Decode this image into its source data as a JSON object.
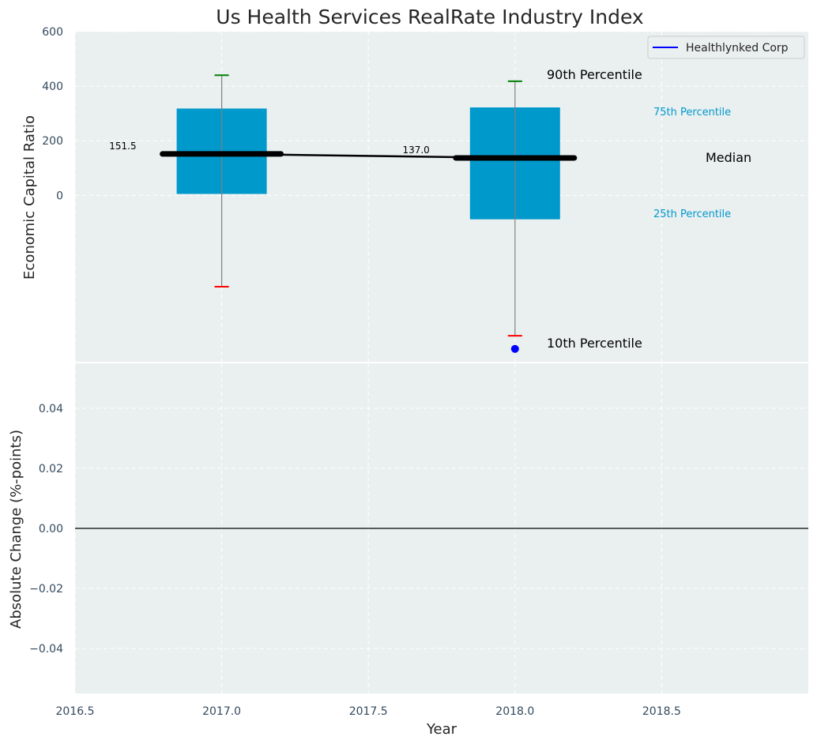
{
  "chart_data": [
    {
      "type": "box",
      "title": "Us Health Services RealRate Industry Index",
      "ylabel": "Economic Capital Ratio",
      "xlim": [
        2016.5,
        2019.0
      ],
      "ylim": [
        -610,
        600
      ],
      "yticks": [
        0,
        200,
        400,
        600
      ],
      "grid": true,
      "legend": {
        "position": "top-right",
        "entries": [
          {
            "name": "Healthlynked Corp",
            "color": "#0000ff"
          }
        ]
      },
      "boxes": [
        {
          "x": 2017.0,
          "p10": -335,
          "p25": 5,
          "median": 151.5,
          "p75": 318,
          "p90": 440
        },
        {
          "x": 2018.0,
          "p10": -515,
          "p25": -88,
          "median": 137.0,
          "p75": 322,
          "p90": 418
        }
      ],
      "median_labels": [
        "151.5",
        "137.0"
      ],
      "company_points": [
        {
          "x": 2018.0,
          "y": -563
        }
      ],
      "annotations": {
        "p90": "90th Percentile",
        "p75": "75th Percentile",
        "median": "Median",
        "p25": "25th Percentile",
        "p10": "10th Percentile"
      },
      "colors": {
        "box": "#0099cc",
        "median": "#000000",
        "p90": "#008000",
        "p10": "#ff0000",
        "company": "#0000ff"
      }
    },
    {
      "type": "line",
      "xlabel": "Year",
      "ylabel": "Absolute Change (%-points)",
      "xlim": [
        2016.5,
        2019.0
      ],
      "ylim": [
        -0.055,
        0.055
      ],
      "xticks": [
        2016.5,
        2017.0,
        2017.5,
        2018.0,
        2018.5
      ],
      "xtick_labels": [
        "2016.5",
        "2017.0",
        "2017.5",
        "2018.0",
        "2018.5"
      ],
      "yticks": [
        -0.04,
        -0.02,
        0.0,
        0.02,
        0.04
      ],
      "ytick_labels": [
        "−0.04",
        "−0.02",
        "0.00",
        "0.02",
        "0.04"
      ],
      "zero_line": 0.0,
      "grid": true
    }
  ]
}
